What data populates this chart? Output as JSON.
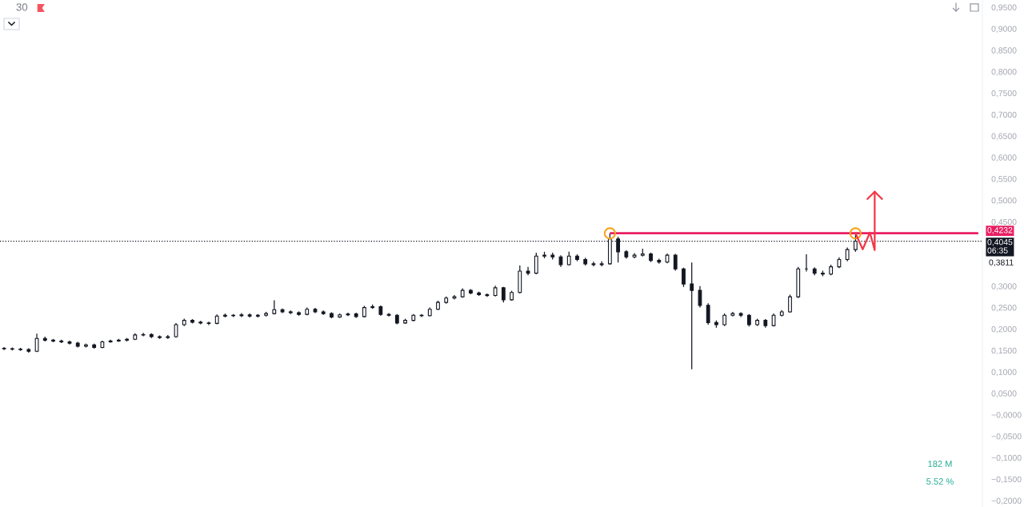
{
  "chart_data": {
    "type": "candlestick",
    "title": "30",
    "color": "#131722",
    "categories": [
      null,
      null,
      null,
      null,
      null,
      null,
      null,
      null,
      null,
      null,
      null,
      null,
      null,
      null,
      null,
      null,
      null,
      null,
      null,
      null,
      null,
      null,
      null,
      null,
      null,
      null,
      null,
      null,
      null,
      null,
      null,
      null,
      null,
      null,
      null,
      null,
      null,
      null,
      null,
      null,
      null,
      null,
      null,
      null,
      null,
      null,
      null,
      null,
      null,
      null,
      null,
      null,
      null,
      null,
      null,
      null,
      null,
      null,
      null,
      null,
      null,
      null,
      null,
      null,
      null,
      null,
      null,
      null,
      null,
      null,
      null,
      null,
      null,
      null,
      null,
      null,
      null,
      null,
      null,
      null,
      null,
      null,
      null,
      null,
      null,
      null,
      null,
      null,
      null,
      null,
      null,
      null,
      null,
      null,
      null,
      null,
      null,
      null,
      null,
      null,
      null,
      null,
      null,
      null,
      null,
      null,
      null,
      null,
      null,
      null,
      null,
      null,
      null,
      null,
      null,
      null,
      null,
      null,
      null,
      null
    ],
    "ohlc": [
      [
        0.155,
        0.158,
        0.151,
        0.154
      ],
      [
        0.154,
        0.157,
        0.15,
        0.153
      ],
      [
        0.153,
        0.156,
        0.149,
        0.152
      ],
      [
        0.152,
        0.155,
        0.145,
        0.148
      ],
      [
        0.148,
        0.189,
        0.146,
        0.178
      ],
      [
        0.178,
        0.182,
        0.171,
        0.174
      ],
      [
        0.174,
        0.177,
        0.169,
        0.172
      ],
      [
        0.172,
        0.175,
        0.167,
        0.17
      ],
      [
        0.17,
        0.173,
        0.164,
        0.167
      ],
      [
        0.167,
        0.17,
        0.157,
        0.16
      ],
      [
        0.16,
        0.166,
        0.157,
        0.163
      ],
      [
        0.163,
        0.166,
        0.154,
        0.157
      ],
      [
        0.157,
        0.173,
        0.155,
        0.17
      ],
      [
        0.17,
        0.175,
        0.168,
        0.172
      ],
      [
        0.172,
        0.177,
        0.17,
        0.174
      ],
      [
        0.174,
        0.179,
        0.171,
        0.176
      ],
      [
        0.176,
        0.19,
        0.174,
        0.186
      ],
      [
        0.186,
        0.191,
        0.183,
        0.187
      ],
      [
        0.187,
        0.19,
        0.179,
        0.182
      ],
      [
        0.182,
        0.185,
        0.177,
        0.18
      ],
      [
        0.18,
        0.186,
        0.177,
        0.182
      ],
      [
        0.182,
        0.214,
        0.18,
        0.21
      ],
      [
        0.21,
        0.224,
        0.207,
        0.22
      ],
      [
        0.22,
        0.223,
        0.213,
        0.216
      ],
      [
        0.216,
        0.219,
        0.211,
        0.214
      ],
      [
        0.214,
        0.217,
        0.209,
        0.213
      ],
      [
        0.213,
        0.234,
        0.211,
        0.23
      ],
      [
        0.23,
        0.236,
        0.227,
        0.232
      ],
      [
        0.232,
        0.235,
        0.228,
        0.231
      ],
      [
        0.231,
        0.237,
        0.228,
        0.233
      ],
      [
        0.233,
        0.236,
        0.227,
        0.23
      ],
      [
        0.23,
        0.235,
        0.227,
        0.232
      ],
      [
        0.232,
        0.24,
        0.229,
        0.236
      ],
      [
        0.236,
        0.267,
        0.234,
        0.245
      ],
      [
        0.245,
        0.248,
        0.237,
        0.24
      ],
      [
        0.24,
        0.243,
        0.235,
        0.238
      ],
      [
        0.238,
        0.241,
        0.231,
        0.234
      ],
      [
        0.234,
        0.25,
        0.232,
        0.246
      ],
      [
        0.246,
        0.249,
        0.237,
        0.24
      ],
      [
        0.24,
        0.243,
        0.233,
        0.236
      ],
      [
        0.236,
        0.239,
        0.225,
        0.228
      ],
      [
        0.228,
        0.236,
        0.226,
        0.233
      ],
      [
        0.233,
        0.238,
        0.23,
        0.235
      ],
      [
        0.235,
        0.238,
        0.226,
        0.229
      ],
      [
        0.229,
        0.254,
        0.227,
        0.25
      ],
      [
        0.25,
        0.257,
        0.247,
        0.252
      ],
      [
        0.252,
        0.255,
        0.231,
        0.234
      ],
      [
        0.234,
        0.237,
        0.229,
        0.232
      ],
      [
        0.232,
        0.235,
        0.211,
        0.214
      ],
      [
        0.214,
        0.224,
        0.212,
        0.22
      ],
      [
        0.22,
        0.235,
        0.218,
        0.232
      ],
      [
        0.232,
        0.235,
        0.228,
        0.231
      ],
      [
        0.231,
        0.25,
        0.229,
        0.246
      ],
      [
        0.246,
        0.266,
        0.244,
        0.262
      ],
      [
        0.262,
        0.276,
        0.259,
        0.272
      ],
      [
        0.272,
        0.279,
        0.269,
        0.275
      ],
      [
        0.275,
        0.295,
        0.273,
        0.29
      ],
      [
        0.29,
        0.293,
        0.281,
        0.284
      ],
      [
        0.284,
        0.287,
        0.277,
        0.28
      ],
      [
        0.28,
        0.283,
        0.275,
        0.278
      ],
      [
        0.278,
        0.301,
        0.276,
        0.296
      ],
      [
        0.296,
        0.298,
        0.262,
        0.268
      ],
      [
        0.268,
        0.289,
        0.266,
        0.285
      ],
      [
        0.285,
        0.348,
        0.283,
        0.335
      ],
      [
        0.335,
        0.345,
        0.325,
        0.33
      ],
      [
        0.33,
        0.378,
        0.328,
        0.37
      ],
      [
        0.37,
        0.38,
        0.365,
        0.372
      ],
      [
        0.372,
        0.378,
        0.362,
        0.368
      ],
      [
        0.368,
        0.372,
        0.345,
        0.35
      ],
      [
        0.35,
        0.38,
        0.348,
        0.37
      ],
      [
        0.37,
        0.374,
        0.358,
        0.362
      ],
      [
        0.362,
        0.366,
        0.348,
        0.352
      ],
      [
        0.352,
        0.357,
        0.346,
        0.35
      ],
      [
        0.35,
        0.358,
        0.346,
        0.352
      ],
      [
        0.352,
        0.423,
        0.35,
        0.41
      ],
      [
        0.41,
        0.415,
        0.355,
        0.38
      ],
      [
        0.38,
        0.384,
        0.364,
        0.368
      ],
      [
        0.368,
        0.377,
        0.365,
        0.372
      ],
      [
        0.372,
        0.387,
        0.369,
        0.375
      ],
      [
        0.375,
        0.378,
        0.356,
        0.36
      ],
      [
        0.36,
        0.364,
        0.352,
        0.356
      ],
      [
        0.356,
        0.376,
        0.353,
        0.372
      ],
      [
        0.372,
        0.375,
        0.336,
        0.34
      ],
      [
        0.34,
        0.343,
        0.298,
        0.305
      ],
      [
        0.305,
        0.355,
        0.106,
        0.29
      ],
      [
        0.29,
        0.3,
        0.25,
        0.255
      ],
      [
        0.255,
        0.26,
        0.21,
        0.215
      ],
      [
        0.215,
        0.22,
        0.203,
        0.21
      ],
      [
        0.21,
        0.236,
        0.207,
        0.232
      ],
      [
        0.232,
        0.24,
        0.229,
        0.236
      ],
      [
        0.236,
        0.239,
        0.228,
        0.232
      ],
      [
        0.232,
        0.235,
        0.206,
        0.21
      ],
      [
        0.21,
        0.224,
        0.207,
        0.22
      ],
      [
        0.22,
        0.223,
        0.203,
        0.208
      ],
      [
        0.208,
        0.236,
        0.206,
        0.232
      ],
      [
        0.232,
        0.244,
        0.229,
        0.24
      ],
      [
        0.24,
        0.28,
        0.238,
        0.275
      ],
      [
        0.275,
        0.345,
        0.272,
        0.34
      ],
      [
        0.34,
        0.374,
        0.334,
        0.34
      ],
      [
        0.34,
        0.344,
        0.325,
        0.33
      ],
      [
        0.33,
        0.336,
        0.323,
        0.328
      ],
      [
        0.328,
        0.35,
        0.325,
        0.345
      ],
      [
        0.345,
        0.367,
        0.342,
        0.362
      ],
      [
        0.362,
        0.39,
        0.358,
        0.385
      ],
      [
        0.385,
        0.423,
        0.38,
        0.4045
      ],
      null,
      null,
      null,
      null,
      null,
      null,
      null,
      null,
      null,
      null,
      null,
      null,
      null,
      null,
      null
    ],
    "series": [
      {
        "type": "line",
        "color": "#e91e63",
        "values": [
          null,
          null,
          null,
          null,
          null,
          null,
          null,
          null,
          null,
          null,
          null,
          null,
          null,
          null,
          null,
          null,
          null,
          null,
          null,
          null,
          null,
          null,
          null,
          null,
          null,
          null,
          null,
          null,
          null,
          null,
          null,
          null,
          null,
          null,
          null,
          null,
          null,
          null,
          null,
          null,
          null,
          null,
          null,
          null,
          null,
          null,
          null,
          null,
          null,
          null,
          null,
          null,
          null,
          null,
          null,
          null,
          null,
          null,
          null,
          null,
          null,
          null,
          null,
          null,
          null,
          null,
          null,
          null,
          null,
          null,
          null,
          null,
          null,
          null,
          0.4232,
          0.4232,
          0.4232,
          0.4232,
          0.4232,
          0.4232,
          0.4232,
          0.4232,
          0.4232,
          0.4232,
          0.4232,
          0.4232,
          0.4232,
          0.4232,
          0.4232,
          0.4232,
          0.4232,
          0.4232,
          0.4232,
          0.4232,
          0.4232,
          0.4232,
          0.4232,
          0.4232,
          0.4232,
          0.4232,
          0.4232,
          0.4232,
          0.4232,
          0.4232,
          0.4232,
          0.4232,
          0.4232,
          0.4232,
          0.4232,
          0.4232,
          0.4232,
          0.4232,
          0.4232,
          0.4232,
          0.4232,
          0.4232,
          0.4232,
          0.4232,
          0.4232,
          0.4232
        ],
        "value_labels": [
          null,
          null,
          null,
          null,
          null,
          null,
          null,
          null,
          null,
          null,
          null,
          null,
          null,
          null,
          null,
          null,
          null,
          null,
          null,
          null,
          null,
          null,
          null,
          null,
          null,
          null,
          null,
          null,
          null,
          null,
          null,
          null,
          null,
          null,
          null,
          null,
          null,
          null,
          null,
          null,
          null,
          null,
          null,
          null,
          null,
          null,
          null,
          null,
          null,
          null,
          null,
          null,
          null,
          null,
          null,
          null,
          null,
          null,
          null,
          null,
          null,
          null,
          null,
          null,
          null,
          null,
          null,
          null,
          null,
          null,
          null,
          null,
          null,
          null,
          null,
          null,
          null,
          null,
          null,
          null,
          null,
          null,
          null,
          null,
          null,
          null,
          null,
          null,
          null,
          null,
          null,
          null,
          null,
          null,
          null,
          null,
          null,
          null,
          null,
          null,
          null,
          null,
          null,
          null,
          null,
          null,
          null,
          null,
          null,
          null,
          null,
          null,
          null,
          null,
          null,
          null,
          null,
          null,
          null,
          "0,4232"
        ]
      }
    ],
    "ref_lines": [
      {
        "axis": "y",
        "value": 0.4045,
        "label": "0,4045\n06:35",
        "color": "#131722",
        "line_style": "dotted"
      }
    ],
    "annotations": [
      "0,3811",
      "182 M",
      "5.52 %"
    ],
    "ylim": [
      -0.215,
      0.967
    ],
    "yticks": [
      {
        "value": 0.95,
        "label": "0,9500"
      },
      {
        "value": 0.9,
        "label": "0,9000"
      },
      {
        "value": 0.85,
        "label": "0,8500"
      },
      {
        "value": 0.8,
        "label": "0,8000"
      },
      {
        "value": 0.75,
        "label": "0,7500"
      },
      {
        "value": 0.7,
        "label": "0,7000"
      },
      {
        "value": 0.65,
        "label": "0,6500"
      },
      {
        "value": 0.6,
        "label": "0,6000"
      },
      {
        "value": 0.55,
        "label": "0,5500"
      },
      {
        "value": 0.5,
        "label": "0,5000"
      },
      {
        "value": 0.45,
        "label": "0,4500"
      },
      {
        "value": 0.3,
        "label": "0,3000"
      },
      {
        "value": 0.25,
        "label": "0,2500"
      },
      {
        "value": 0.2,
        "label": "0,2000"
      },
      {
        "value": 0.15,
        "label": "0,1500"
      },
      {
        "value": 0.1,
        "label": "0,1000"
      },
      {
        "value": 0.05,
        "label": "0,0500"
      },
      {
        "value": 0,
        "label": "−0,0000"
      },
      {
        "value": -0.05,
        "label": "−0,0500"
      },
      {
        "value": -0.1,
        "label": "−0,1000"
      },
      {
        "value": -0.15,
        "label": "−0,1500"
      },
      {
        "value": -0.2,
        "label": "−0,2000"
      }
    ],
    "tick_labels": "y"
  }
}
